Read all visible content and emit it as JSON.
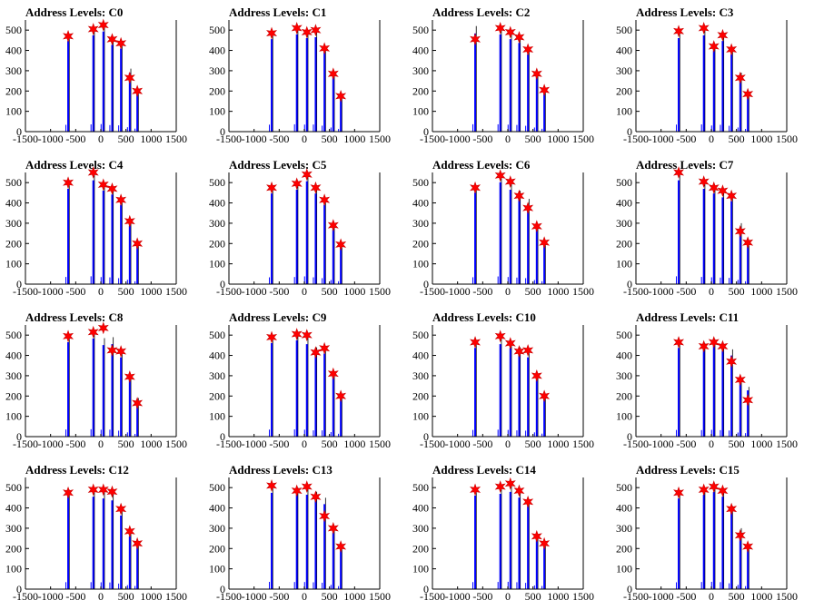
{
  "title_prefix": "Address Levels: ",
  "style": {
    "bar_color": "#0000ff",
    "peak_color": "#000000",
    "star_color": "#ff0000",
    "star_stroke": "#cc0000"
  },
  "axes": {
    "xlim": [
      -1500,
      1500
    ],
    "ylim": [
      0,
      550
    ],
    "xticks": [
      -1500,
      -1000,
      -500,
      0,
      500,
      1000,
      1500
    ],
    "xtick_labels": [
      "-1500",
      "-1000",
      "-500",
      "0",
      "500",
      "1000",
      "1500"
    ],
    "yticks": [
      0,
      100,
      200,
      300,
      400,
      500
    ],
    "ytick_labels": [
      "0",
      "100",
      "200",
      "300",
      "400",
      "500"
    ]
  },
  "chart_data": [
    {
      "type": "bar",
      "title": "Address Levels: C0",
      "levels": [
        -650,
        -150,
        50,
        225,
        400,
        575,
        725
      ],
      "bar_heights": [
        480,
        510,
        530,
        460,
        440,
        310,
        210
      ],
      "star_values": [
        470,
        505,
        525,
        455,
        435,
        265,
        200
      ]
    },
    {
      "type": "bar",
      "title": "Address Levels: C1",
      "levels": [
        -650,
        -150,
        50,
        225,
        400,
        575,
        725
      ],
      "bar_heights": [
        490,
        515,
        495,
        500,
        420,
        290,
        185
      ],
      "star_values": [
        485,
        510,
        490,
        500,
        410,
        285,
        175
      ]
    },
    {
      "type": "bar",
      "title": "Address Levels: C2",
      "levels": [
        -650,
        -150,
        50,
        225,
        400,
        575,
        725
      ],
      "bar_heights": [
        520,
        515,
        490,
        470,
        410,
        290,
        200
      ],
      "star_values": [
        455,
        510,
        490,
        465,
        405,
        285,
        205
      ]
    },
    {
      "type": "bar",
      "title": "Address Levels: C3",
      "levels": [
        -650,
        -150,
        50,
        225,
        400,
        575,
        725
      ],
      "bar_heights": [
        495,
        510,
        430,
        480,
        410,
        290,
        190
      ],
      "star_values": [
        495,
        510,
        420,
        475,
        405,
        265,
        185
      ]
    },
    {
      "type": "bar",
      "title": "Address Levels: C4",
      "levels": [
        -650,
        -150,
        50,
        225,
        400,
        575,
        725
      ],
      "bar_heights": [
        505,
        550,
        495,
        475,
        420,
        310,
        200
      ],
      "star_values": [
        500,
        550,
        490,
        470,
        415,
        310,
        200
      ]
    },
    {
      "type": "bar",
      "title": "Address Levels: C5",
      "levels": [
        -650,
        -150,
        50,
        225,
        400,
        575,
        725
      ],
      "bar_heights": [
        480,
        500,
        545,
        480,
        420,
        290,
        200
      ],
      "star_values": [
        475,
        495,
        540,
        475,
        415,
        290,
        195
      ]
    },
    {
      "type": "bar",
      "title": "Address Levels: C6",
      "levels": [
        -650,
        -150,
        50,
        225,
        400,
        575,
        725
      ],
      "bar_heights": [
        485,
        540,
        500,
        460,
        420,
        290,
        205
      ],
      "star_values": [
        475,
        535,
        505,
        435,
        375,
        285,
        205
      ]
    },
    {
      "type": "bar",
      "title": "Address Levels: C7",
      "levels": [
        -650,
        -150,
        50,
        225,
        400,
        575,
        725
      ],
      "bar_heights": [
        550,
        505,
        480,
        460,
        440,
        300,
        200
      ],
      "star_values": [
        550,
        505,
        475,
        460,
        435,
        260,
        205
      ]
    },
    {
      "type": "bar",
      "title": "Address Levels: C8",
      "levels": [
        -650,
        -150,
        50,
        225,
        400,
        575,
        725
      ],
      "bar_heights": [
        500,
        520,
        485,
        490,
        420,
        300,
        190
      ],
      "star_values": [
        495,
        515,
        535,
        425,
        420,
        295,
        165
      ]
    },
    {
      "type": "bar",
      "title": "Address Levels: C9",
      "levels": [
        -650,
        -150,
        50,
        225,
        400,
        575,
        725
      ],
      "bar_heights": [
        495,
        510,
        490,
        440,
        440,
        320,
        200
      ],
      "star_values": [
        490,
        505,
        500,
        415,
        435,
        310,
        200
      ]
    },
    {
      "type": "bar",
      "title": "Address Levels: C10",
      "levels": [
        -650,
        -150,
        50,
        225,
        400,
        575,
        725
      ],
      "bar_heights": [
        470,
        490,
        470,
        440,
        420,
        300,
        210
      ],
      "star_values": [
        465,
        495,
        460,
        420,
        425,
        300,
        200
      ]
    },
    {
      "type": "bar",
      "title": "Address Levels: C11",
      "levels": [
        -650,
        -150,
        50,
        225,
        400,
        575,
        725
      ],
      "bar_heights": [
        470,
        460,
        480,
        455,
        430,
        290,
        245
      ],
      "star_values": [
        465,
        445,
        465,
        445,
        370,
        280,
        180
      ]
    },
    {
      "type": "bar",
      "title": "Address Levels: C12",
      "levels": [
        -650,
        -150,
        50,
        225,
        400,
        575,
        725
      ],
      "bar_heights": [
        490,
        490,
        480,
        470,
        390,
        280,
        220
      ],
      "star_values": [
        475,
        490,
        490,
        480,
        395,
        285,
        225
      ]
    },
    {
      "type": "bar",
      "title": "Address Levels: C13",
      "levels": [
        -650,
        -150,
        50,
        225,
        400,
        575,
        725
      ],
      "bar_heights": [
        510,
        500,
        500,
        480,
        450,
        300,
        210
      ],
      "star_values": [
        510,
        485,
        505,
        455,
        360,
        300,
        210
      ]
    },
    {
      "type": "bar",
      "title": "Address Levels: C14",
      "levels": [
        -650,
        -150,
        50,
        225,
        400,
        575,
        725
      ],
      "bar_heights": [
        495,
        505,
        515,
        485,
        440,
        260,
        220
      ],
      "star_values": [
        490,
        505,
        520,
        485,
        430,
        260,
        225
      ]
    },
    {
      "type": "bar",
      "title": "Address Levels: C15",
      "levels": [
        -650,
        -150,
        50,
        225,
        400,
        575,
        725
      ],
      "bar_heights": [
        480,
        500,
        515,
        490,
        410,
        300,
        210
      ],
      "star_values": [
        475,
        490,
        505,
        485,
        395,
        265,
        210
      ]
    }
  ]
}
